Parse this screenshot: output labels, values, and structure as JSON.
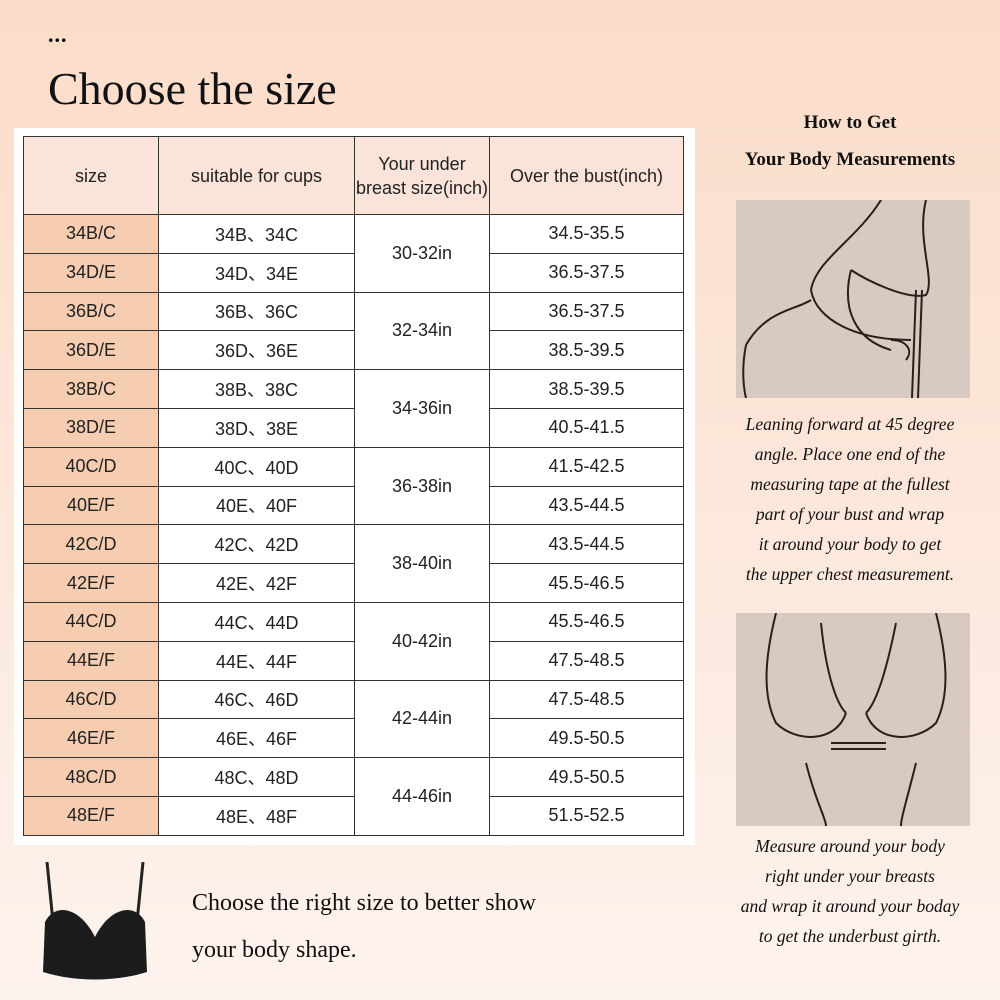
{
  "header": {
    "dots": "...",
    "title": "Choose the size"
  },
  "table": {
    "headers": [
      "size",
      "suitable for cups",
      "Your under breast size(inch)",
      "Over the bust(inch)"
    ],
    "rows": [
      {
        "size": "34B/C",
        "cups": "34B、34C",
        "bust": "34.5-35.5"
      },
      {
        "size": "34D/E",
        "cups": "34D、34E",
        "bust": "36.5-37.5"
      },
      {
        "size": "36B/C",
        "cups": "36B、36C",
        "bust": "36.5-37.5"
      },
      {
        "size": "36D/E",
        "cups": "36D、36E",
        "bust": "38.5-39.5"
      },
      {
        "size": "38B/C",
        "cups": "38B、38C",
        "bust": "38.5-39.5"
      },
      {
        "size": "38D/E",
        "cups": "38D、38E",
        "bust": "40.5-41.5"
      },
      {
        "size": "40C/D",
        "cups": "40C、40D",
        "bust": "41.5-42.5"
      },
      {
        "size": "40E/F",
        "cups": "40E、40F",
        "bust": "43.5-44.5"
      },
      {
        "size": "42C/D",
        "cups": "42C、42D",
        "bust": "43.5-44.5"
      },
      {
        "size": "42E/F",
        "cups": "42E、42F",
        "bust": "45.5-46.5"
      },
      {
        "size": "44C/D",
        "cups": "44C、44D",
        "bust": "45.5-46.5"
      },
      {
        "size": "44E/F",
        "cups": "44E、44F",
        "bust": "47.5-48.5"
      },
      {
        "size": "46C/D",
        "cups": "46C、46D",
        "bust": "47.5-48.5"
      },
      {
        "size": "46E/F",
        "cups": "46E、46F",
        "bust": "49.5-50.5"
      },
      {
        "size": "48C/D",
        "cups": "48C、48D",
        "bust": "49.5-50.5"
      },
      {
        "size": "48E/F",
        "cups": "48E、48F",
        "bust": "51.5-52.5"
      }
    ],
    "underbust": [
      "30-32in",
      "32-34in",
      "34-36in",
      "36-38in",
      "38-40in",
      "40-42in",
      "42-44in",
      "44-46in"
    ]
  },
  "guide": {
    "title_1": "How to Get",
    "title_2": "Your Body Measurements",
    "step1": [
      "Leaning forward at 45 degree",
      "angle. Place one end of the",
      "measuring tape at the fullest",
      "part of your bust and wrap",
      "it around your body to get",
      "the upper chest measurement."
    ],
    "step2": [
      "Measure around your body",
      "right under your breasts",
      "and wrap it around your boday",
      "to get the underbust girth."
    ]
  },
  "footer": {
    "line1": "Choose the right size to better show",
    "line2": "your body shape."
  },
  "colors": {
    "size_cell": "#f6cdb0",
    "header_cell": "#fae3d8"
  }
}
